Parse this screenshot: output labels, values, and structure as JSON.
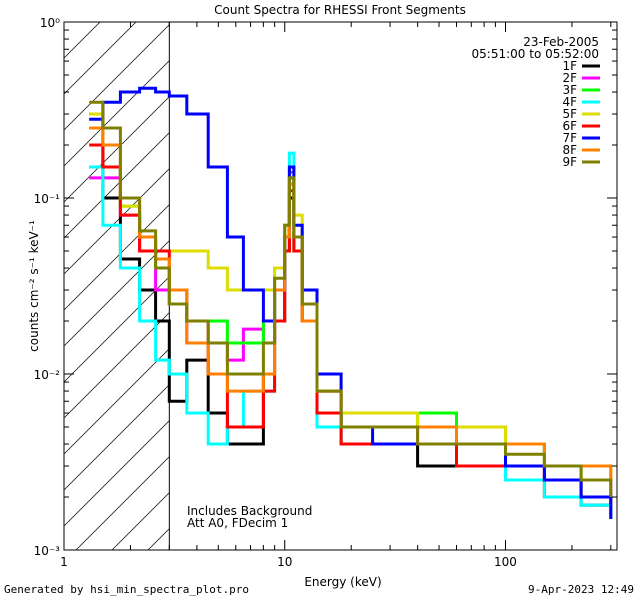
{
  "chart_data": {
    "type": "line",
    "title": "Count Spectra for RHESSI Front Segments",
    "xlabel": "Energy (keV)",
    "ylabel": "counts cm⁻² s⁻¹ keV⁻¹",
    "xscale": "log",
    "yscale": "log",
    "xlim": [
      1,
      320
    ],
    "ylim": [
      0.001,
      1
    ],
    "x_ticks": [
      {
        "value": 1,
        "label": "1"
      },
      {
        "value": 10,
        "label": "10"
      },
      {
        "value": 100,
        "label": "100"
      }
    ],
    "y_ticks": [
      {
        "value": 1,
        "label": "10⁰"
      },
      {
        "value": 0.1,
        "label": "10⁻¹"
      },
      {
        "value": 0.01,
        "label": "10⁻²"
      },
      {
        "value": 0.001,
        "label": "10⁻³"
      }
    ],
    "date": "23-Feb-2005",
    "time_range": "05:51:00 to 05:52:00",
    "annotations": [
      "Includes Background",
      "Att A0, FDecim 1"
    ],
    "shaded_region": {
      "x_from": 1.0,
      "x_to": 3.0,
      "pattern": "diagonal hatch"
    },
    "legend_position": "top-right",
    "series": [
      {
        "name": "1F",
        "color": "#000000",
        "points": [
          [
            1.3,
            0.3
          ],
          [
            1.5,
            0.1
          ],
          [
            1.8,
            0.045
          ],
          [
            2.2,
            0.03
          ],
          [
            2.6,
            0.02
          ],
          [
            3,
            0.007
          ],
          [
            3.6,
            0.012
          ],
          [
            4.5,
            0.006
          ],
          [
            5.5,
            0.004
          ],
          [
            6.5,
            0.004
          ],
          [
            8,
            0.01
          ],
          [
            9,
            0.02
          ],
          [
            10,
            0.05
          ],
          [
            10.5,
            0.1
          ],
          [
            11,
            0.05
          ],
          [
            12,
            0.02
          ],
          [
            14,
            0.006
          ],
          [
            18,
            0.004
          ],
          [
            25,
            0.004
          ],
          [
            40,
            0.003
          ],
          [
            60,
            0.003
          ],
          [
            100,
            0.0025
          ],
          [
            150,
            0.002
          ],
          [
            220,
            0.0018
          ],
          [
            300,
            0.0015
          ]
        ]
      },
      {
        "name": "2F",
        "color": "#ff00ff",
        "points": [
          [
            1.3,
            0.13
          ],
          [
            1.5,
            0.13
          ],
          [
            1.8,
            0.08
          ],
          [
            2.2,
            0.05
          ],
          [
            2.6,
            0.03
          ],
          [
            3,
            0.025
          ],
          [
            3.6,
            0.015
          ],
          [
            4.5,
            0.015
          ],
          [
            5.5,
            0.012
          ],
          [
            6.5,
            0.018
          ],
          [
            8,
            0.015
          ],
          [
            9,
            0.03
          ],
          [
            10,
            0.06
          ],
          [
            10.5,
            0.14
          ],
          [
            11,
            0.06
          ],
          [
            12,
            0.02
          ],
          [
            14,
            0.008
          ],
          [
            18,
            0.005
          ],
          [
            25,
            0.005
          ],
          [
            40,
            0.004
          ],
          [
            60,
            0.004
          ],
          [
            100,
            0.003
          ],
          [
            150,
            0.0025
          ],
          [
            220,
            0.0025
          ],
          [
            300,
            0.002
          ]
        ]
      },
      {
        "name": "3F",
        "color": "#00ff00",
        "points": [
          [
            1.3,
            0.15
          ],
          [
            1.5,
            0.15
          ],
          [
            1.8,
            0.09
          ],
          [
            2.2,
            0.06
          ],
          [
            2.6,
            0.04
          ],
          [
            3,
            0.025
          ],
          [
            3.6,
            0.02
          ],
          [
            4.5,
            0.02
          ],
          [
            5.5,
            0.015
          ],
          [
            6.5,
            0.015
          ],
          [
            8,
            0.02
          ],
          [
            9,
            0.04
          ],
          [
            10,
            0.07
          ],
          [
            10.5,
            0.13
          ],
          [
            11,
            0.05
          ],
          [
            12,
            0.02
          ],
          [
            14,
            0.006
          ],
          [
            18,
            0.005
          ],
          [
            25,
            0.005
          ],
          [
            40,
            0.006
          ],
          [
            60,
            0.005
          ],
          [
            100,
            0.004
          ],
          [
            150,
            0.003
          ],
          [
            220,
            0.002
          ],
          [
            300,
            0.0018
          ]
        ]
      },
      {
        "name": "4F",
        "color": "#00ffff",
        "points": [
          [
            1.3,
            0.15
          ],
          [
            1.5,
            0.07
          ],
          [
            1.8,
            0.04
          ],
          [
            2.2,
            0.02
          ],
          [
            2.6,
            0.012
          ],
          [
            3,
            0.01
          ],
          [
            3.6,
            0.006
          ],
          [
            4.5,
            0.004
          ],
          [
            5.5,
            0.005
          ],
          [
            6.5,
            0.008
          ],
          [
            8,
            0.008
          ],
          [
            9,
            0.03
          ],
          [
            10,
            0.06
          ],
          [
            10.5,
            0.18
          ],
          [
            11,
            0.06
          ],
          [
            12,
            0.02
          ],
          [
            14,
            0.005
          ],
          [
            18,
            0.004
          ],
          [
            25,
            0.004
          ],
          [
            40,
            0.004
          ],
          [
            60,
            0.003
          ],
          [
            100,
            0.0025
          ],
          [
            150,
            0.002
          ],
          [
            220,
            0.0018
          ],
          [
            300,
            0.0015
          ]
        ]
      },
      {
        "name": "5F",
        "color": "#dddd00",
        "points": [
          [
            1.3,
            0.3
          ],
          [
            1.5,
            0.2
          ],
          [
            1.8,
            0.09
          ],
          [
            2.2,
            0.06
          ],
          [
            2.6,
            0.05
          ],
          [
            3,
            0.05
          ],
          [
            3.6,
            0.05
          ],
          [
            4.5,
            0.04
          ],
          [
            5.5,
            0.03
          ],
          [
            6.5,
            0.03
          ],
          [
            8,
            0.03
          ],
          [
            9,
            0.04
          ],
          [
            10,
            0.07
          ],
          [
            10.5,
            0.15
          ],
          [
            11,
            0.08
          ],
          [
            12,
            0.03
          ],
          [
            14,
            0.01
          ],
          [
            18,
            0.006
          ],
          [
            25,
            0.006
          ],
          [
            40,
            0.005
          ],
          [
            60,
            0.005
          ],
          [
            100,
            0.004
          ],
          [
            150,
            0.003
          ],
          [
            220,
            0.003
          ],
          [
            300,
            0.0025
          ]
        ]
      },
      {
        "name": "6F",
        "color": "#ff0000",
        "points": [
          [
            1.3,
            0.2
          ],
          [
            1.5,
            0.15
          ],
          [
            1.8,
            0.08
          ],
          [
            2.2,
            0.05
          ],
          [
            2.6,
            0.05
          ],
          [
            3,
            0.03
          ],
          [
            3.6,
            0.02
          ],
          [
            4.5,
            0.01
          ],
          [
            5.5,
            0.005
          ],
          [
            6.5,
            0.005
          ],
          [
            8,
            0.008
          ],
          [
            9,
            0.02
          ],
          [
            10,
            0.05
          ],
          [
            10.5,
            0.11
          ],
          [
            11,
            0.05
          ],
          [
            12,
            0.02
          ],
          [
            14,
            0.006
          ],
          [
            18,
            0.004
          ],
          [
            25,
            0.004
          ],
          [
            40,
            0.004
          ],
          [
            60,
            0.003
          ],
          [
            100,
            0.003
          ],
          [
            150,
            0.0025
          ],
          [
            220,
            0.002
          ],
          [
            300,
            0.0018
          ]
        ]
      },
      {
        "name": "7F",
        "color": "#0000ff",
        "points": [
          [
            1.3,
            0.28
          ],
          [
            1.5,
            0.35
          ],
          [
            1.8,
            0.4
          ],
          [
            2.2,
            0.42
          ],
          [
            2.6,
            0.4
          ],
          [
            3,
            0.38
          ],
          [
            3.6,
            0.3
          ],
          [
            4.5,
            0.15
          ],
          [
            5.5,
            0.06
          ],
          [
            6.5,
            0.03
          ],
          [
            8,
            0.02
          ],
          [
            9,
            0.03
          ],
          [
            10,
            0.06
          ],
          [
            10.5,
            0.15
          ],
          [
            11,
            0.07
          ],
          [
            12,
            0.03
          ],
          [
            14,
            0.01
          ],
          [
            18,
            0.005
          ],
          [
            25,
            0.004
          ],
          [
            40,
            0.004
          ],
          [
            60,
            0.004
          ],
          [
            100,
            0.003
          ],
          [
            150,
            0.0025
          ],
          [
            220,
            0.002
          ],
          [
            300,
            0.0015
          ]
        ]
      },
      {
        "name": "8F",
        "color": "#ff8000",
        "points": [
          [
            1.3,
            0.25
          ],
          [
            1.5,
            0.2
          ],
          [
            1.8,
            0.1
          ],
          [
            2.2,
            0.06
          ],
          [
            2.6,
            0.045
          ],
          [
            3,
            0.03
          ],
          [
            3.6,
            0.015
          ],
          [
            4.5,
            0.01
          ],
          [
            5.5,
            0.008
          ],
          [
            6.5,
            0.008
          ],
          [
            8,
            0.01
          ],
          [
            9,
            0.03
          ],
          [
            10,
            0.06
          ],
          [
            10.5,
            0.12
          ],
          [
            11,
            0.06
          ],
          [
            12,
            0.02
          ],
          [
            14,
            0.008
          ],
          [
            18,
            0.005
          ],
          [
            25,
            0.005
          ],
          [
            40,
            0.005
          ],
          [
            60,
            0.004
          ],
          [
            100,
            0.004
          ],
          [
            150,
            0.003
          ],
          [
            220,
            0.003
          ],
          [
            300,
            0.0025
          ]
        ]
      },
      {
        "name": "9F",
        "color": "#808000",
        "points": [
          [
            1.3,
            0.35
          ],
          [
            1.5,
            0.25
          ],
          [
            1.8,
            0.1
          ],
          [
            2.2,
            0.065
          ],
          [
            2.6,
            0.04
          ],
          [
            3,
            0.025
          ],
          [
            3.6,
            0.02
          ],
          [
            4.5,
            0.015
          ],
          [
            5.5,
            0.01
          ],
          [
            6.5,
            0.01
          ],
          [
            8,
            0.015
          ],
          [
            9,
            0.035
          ],
          [
            10,
            0.07
          ],
          [
            10.5,
            0.13
          ],
          [
            11,
            0.06
          ],
          [
            12,
            0.025
          ],
          [
            14,
            0.008
          ],
          [
            18,
            0.005
          ],
          [
            25,
            0.005
          ],
          [
            40,
            0.004
          ],
          [
            60,
            0.004
          ],
          [
            100,
            0.0035
          ],
          [
            150,
            0.003
          ],
          [
            220,
            0.0025
          ],
          [
            300,
            0.002
          ]
        ]
      }
    ]
  },
  "footer": {
    "generated_by": "Generated by hsi_min_spectra_plot.pro",
    "timestamp": "9-Apr-2023 12:49"
  }
}
